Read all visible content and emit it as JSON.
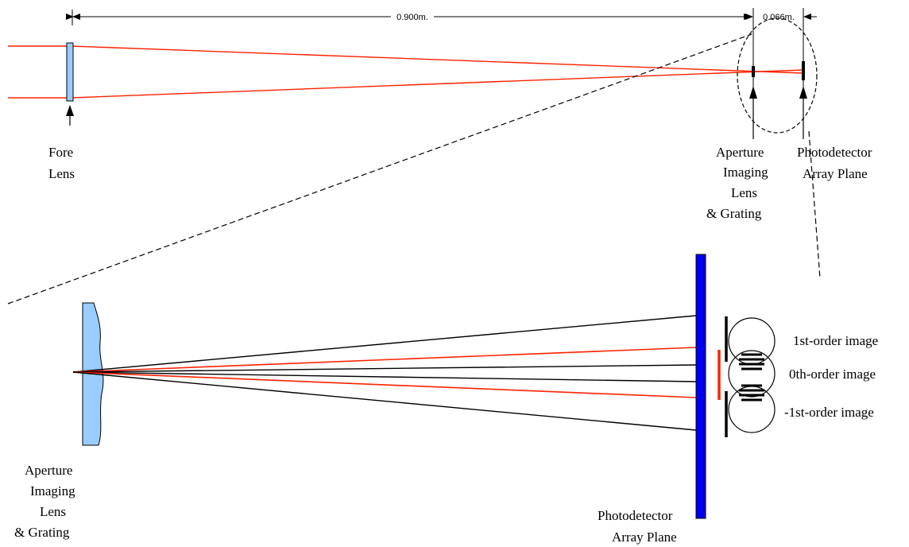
{
  "top_view": {
    "dimension_main": "0.900m.",
    "dimension_small": "0.066m.",
    "fore_lens": [
      "Fore",
      "Lens"
    ],
    "aperture_lens": [
      "Aperture",
      "Imaging",
      "Lens",
      "& Grating"
    ],
    "detector_plane": [
      "Photodetector",
      "Array Plane"
    ]
  },
  "detail_view": {
    "aperture_lens": [
      "Aperture",
      "Imaging",
      "Lens",
      "& Grating"
    ],
    "detector_plane": [
      "Photodetector",
      "Array Plane"
    ],
    "orders": [
      "1st-order image",
      "0th-order image",
      "-1st-order image"
    ]
  },
  "colors": {
    "ray": "#ff2200",
    "lens_fill": "#99ccff",
    "detector": "#0000ee",
    "ink": "#000000"
  }
}
